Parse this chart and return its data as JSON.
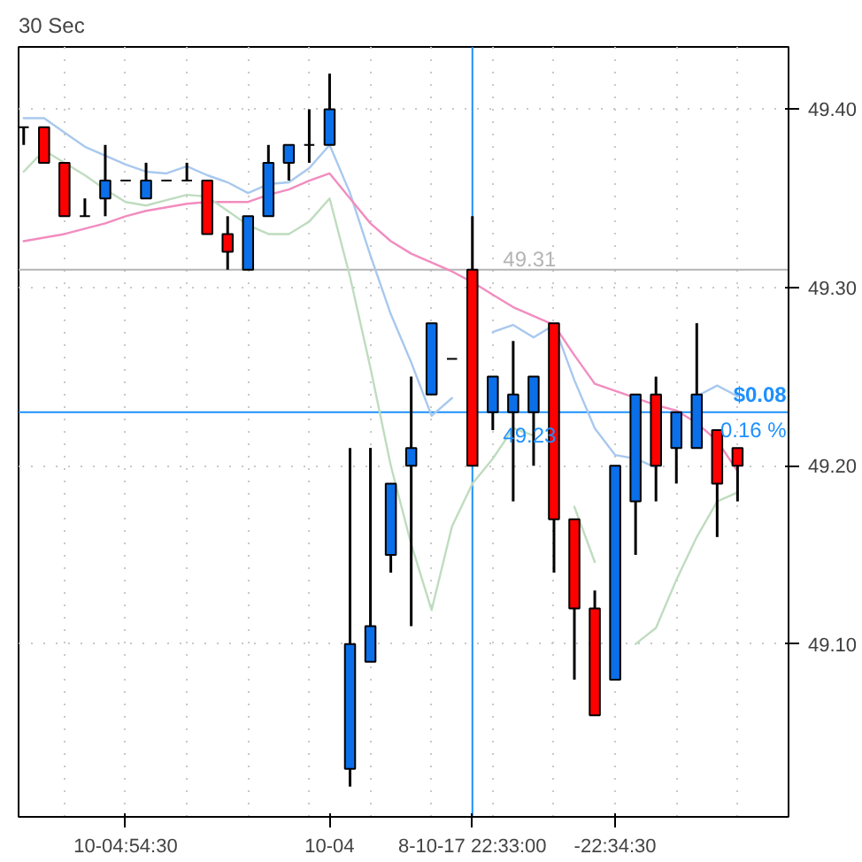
{
  "chart_data": {
    "type": "candlestick",
    "title": "30 Sec",
    "categories": [
      null,
      null,
      null,
      null,
      null,
      "10-04:54:30",
      null,
      null,
      null,
      null,
      null,
      null,
      null,
      null,
      null,
      "10-04",
      null,
      null,
      null,
      null,
      null,
      null,
      "8-10-17 22:33:00",
      null,
      null,
      null,
      null,
      null,
      null,
      "-22:34:30",
      null,
      null,
      null,
      null,
      null,
      null
    ],
    "ohlc": [
      [
        49.39,
        49.39,
        49.38,
        49.39
      ],
      [
        49.39,
        49.39,
        49.37,
        49.37
      ],
      [
        49.37,
        49.37,
        49.34,
        49.34
      ],
      [
        49.34,
        49.35,
        49.34,
        49.34
      ],
      [
        49.35,
        49.38,
        49.34,
        49.36
      ],
      [
        49.36,
        49.36,
        49.36,
        49.36
      ],
      [
        49.35,
        49.37,
        49.35,
        49.36
      ],
      [
        49.36,
        49.36,
        49.36,
        49.36
      ],
      [
        49.36,
        49.37,
        49.36,
        49.36
      ],
      [
        49.36,
        49.36,
        49.33,
        49.33
      ],
      [
        49.33,
        49.34,
        49.31,
        49.32
      ],
      [
        49.31,
        49.34,
        49.31,
        49.34
      ],
      [
        49.34,
        49.38,
        49.34,
        49.37
      ],
      [
        49.37,
        49.38,
        49.36,
        49.38
      ],
      [
        49.38,
        49.4,
        49.37,
        49.38
      ],
      [
        49.38,
        49.42,
        49.38,
        49.4
      ],
      [
        49.03,
        49.21,
        49.02,
        49.1
      ],
      [
        49.09,
        49.21,
        49.09,
        49.11
      ],
      [
        49.15,
        49.19,
        49.14,
        49.19
      ],
      [
        49.2,
        49.25,
        49.11,
        49.21
      ],
      [
        49.24,
        49.28,
        49.24,
        49.28
      ],
      [
        49.26,
        49.26,
        49.26,
        49.26
      ],
      [
        49.31,
        49.34,
        49.2,
        49.2
      ],
      [
        49.23,
        49.25,
        49.22,
        49.25
      ],
      [
        49.23,
        49.27,
        49.18,
        49.24
      ],
      [
        49.23,
        49.25,
        49.2,
        49.25
      ],
      [
        49.28,
        49.28,
        49.14,
        49.17
      ],
      [
        49.17,
        49.17,
        49.08,
        49.12
      ],
      [
        49.12,
        49.13,
        49.06,
        49.06
      ],
      [
        49.08,
        49.2,
        49.08,
        49.2
      ],
      [
        49.18,
        49.24,
        49.15,
        49.24
      ],
      [
        49.24,
        49.25,
        49.18,
        49.2
      ],
      [
        49.21,
        49.23,
        49.19,
        49.23
      ],
      [
        49.21,
        49.28,
        49.21,
        49.24
      ],
      [
        49.22,
        49.22,
        49.16,
        49.19
      ],
      [
        49.21,
        49.21,
        49.18,
        49.2
      ]
    ],
    "colors": [
      "#000000",
      "#ff0000",
      "#ff0000",
      "#000000",
      "#0a6fe8",
      "#000000",
      "#0a6fe8",
      "#000000",
      "#000000",
      "#ff0000",
      "#ff0000",
      "#0a6fe8",
      "#0a6fe8",
      "#0a6fe8",
      "#000000",
      "#0a6fe8",
      "#0a6fe8",
      "#0a6fe8",
      "#0a6fe8",
      "#0a6fe8",
      "#0a6fe8",
      "#000000",
      "#ff0000",
      "#0a6fe8",
      "#0a6fe8",
      "#0a6fe8",
      "#ff0000",
      "#ff0000",
      "#ff0000",
      "#0a6fe8",
      "#0a6fe8",
      "#ff0000",
      "#0a6fe8",
      "#0a6fe8",
      "#ff0000",
      "#ff0000"
    ],
    "series": [
      {
        "type": "line",
        "color": "#a8c8ee",
        "values": [
          49.395,
          49.395,
          49.387,
          49.379,
          49.374,
          49.369,
          49.365,
          49.364,
          49.368,
          49.363,
          49.359,
          49.353,
          49.358,
          49.359,
          49.367,
          49.38,
          49.353,
          49.318,
          49.285,
          49.258,
          49.228,
          49.238,
          null,
          49.275,
          49.279,
          49.272,
          49.279,
          49.248,
          49.221,
          49.206,
          49.204,
          49.199,
          null,
          49.239,
          49.245,
          49.239
        ]
      },
      {
        "type": "line",
        "color": "#f28cbf",
        "values": [
          49.326,
          49.328,
          49.33,
          49.333,
          49.336,
          49.34,
          49.343,
          49.345,
          49.347,
          49.348,
          49.348,
          49.348,
          49.352,
          49.355,
          49.36,
          49.364,
          49.35,
          49.336,
          49.326,
          49.319,
          49.314,
          49.309,
          49.303,
          49.296,
          49.289,
          49.284,
          49.279,
          49.262,
          49.246,
          49.242,
          49.238,
          49.234,
          49.231,
          49.224,
          49.214,
          49.197
        ]
      },
      {
        "type": "line",
        "color": "#bfdcbf",
        "values": [
          49.365,
          49.377,
          49.37,
          49.363,
          49.355,
          49.348,
          49.346,
          49.349,
          49.352,
          49.351,
          49.343,
          49.335,
          49.33,
          49.33,
          49.337,
          49.35,
          49.306,
          49.255,
          49.2,
          49.156,
          49.119,
          49.166,
          49.19,
          49.204,
          49.221,
          49.217,
          null,
          49.177,
          49.146,
          null,
          49.1,
          49.109,
          49.136,
          49.16,
          49.18,
          49.185
        ]
      }
    ],
    "ylim": [
      49.003,
      49.435
    ],
    "yticks": [
      {
        "value": 49.1,
        "label": "49.10"
      },
      {
        "value": 49.2,
        "label": "49.20"
      },
      {
        "value": 49.3,
        "label": "49.30"
      },
      {
        "value": 49.4,
        "label": "49.40"
      }
    ],
    "grid": true,
    "ref_lines": [
      {
        "axis": "x",
        "value": "8-10-17 22:33:00",
        "color": "#1e90ff"
      },
      {
        "axis": "y",
        "value": 49.31,
        "label": "49.31",
        "color": "#b4b4b4"
      },
      {
        "axis": "y",
        "value": 49.23,
        "label": "49.23",
        "color": "#1e90ff"
      }
    ],
    "annotations": [
      "$0.08",
      "0.16 %"
    ]
  }
}
